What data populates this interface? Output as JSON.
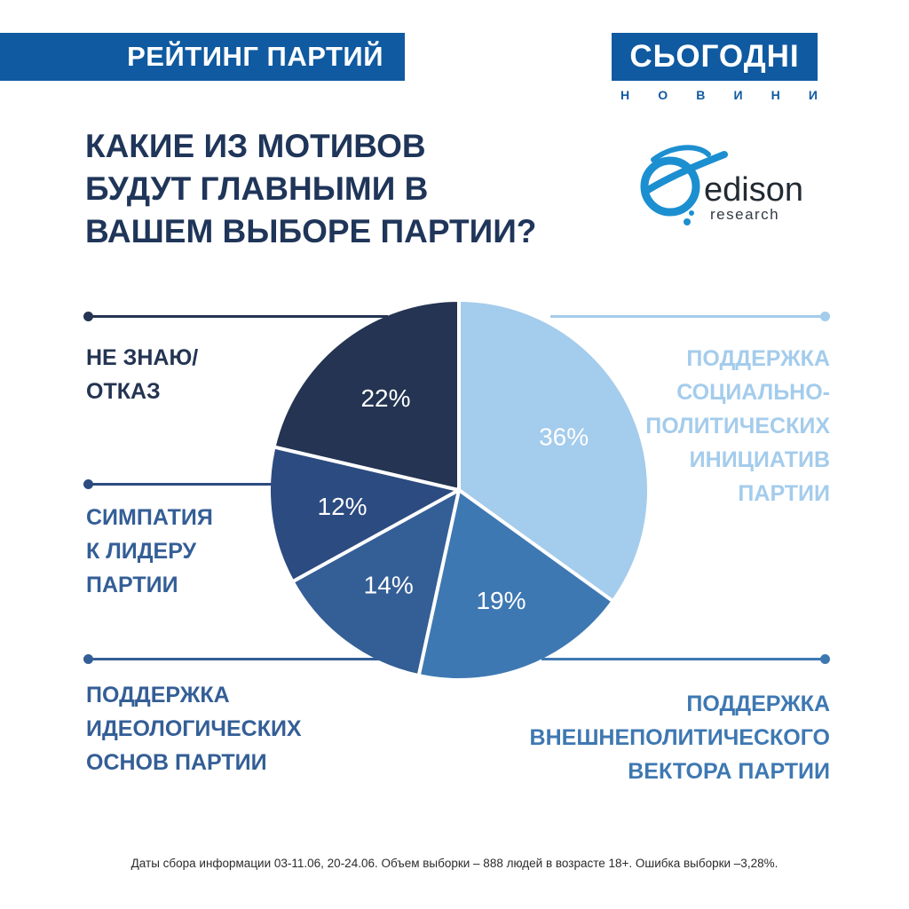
{
  "header": {
    "banner_title": "РЕЙТИНГ ПАРТИЙ",
    "logo_text": "СЬОГОДНІ",
    "logo_sub_letters": [
      "Н",
      "О",
      "В",
      "И",
      "Н",
      "И"
    ]
  },
  "edison": {
    "name": "edison",
    "sub": "research"
  },
  "colors": {
    "brand_blue": "#0f5aa0",
    "text_dark": "#1f3559",
    "slice_light": "#a4ccec",
    "slice_mid": "#3e78b2",
    "slice_mid2": "#345e96",
    "slice_dark_blue": "#2c4b80",
    "slice_navy": "#243452"
  },
  "chart_data": {
    "type": "pie",
    "title": "КАКИЕ ИЗ МОТИВОВ\nБУДУТ ГЛАВНЫМИ В\nВАШЕМ ВЫБОРЕ ПАРТИИ?",
    "slices": [
      {
        "label": "ПОДДЕРЖКА\nСОЦИАЛЬНО-\nПОЛИТИЧЕСКИХ\nИНИЦИАТИВ\nПАРТИИ",
        "value": 36,
        "value_label": "36%",
        "color": "#a4ccec"
      },
      {
        "label": "ПОДДЕРЖКА\nВНЕШНЕПОЛИТИЧЕСКОГО\nВЕКТОРА ПАРТИИ",
        "value": 19,
        "value_label": "19%",
        "color": "#3e78b2"
      },
      {
        "label": "ПОДДЕРЖКА\nИДЕОЛОГИЧЕСКИХ\nОСНОВ ПАРТИИ",
        "value": 14,
        "value_label": "14%",
        "color": "#345e96"
      },
      {
        "label": "СИМПАТИЯ\nК ЛИДЕРУ\nПАРТИИ",
        "value": 12,
        "value_label": "12%",
        "color": "#2c4b80"
      },
      {
        "label": "НЕ ЗНАЮ/\nОТКАЗ",
        "value": 22,
        "value_label": "22%",
        "color": "#243452"
      }
    ],
    "legend": "labels with leader lines"
  },
  "footnote": "Даты сбора информации 03-11.06, 20-24.06. Объем выборки – 888  людей в возрасте 18+. Ошибка выборки –3,28%."
}
